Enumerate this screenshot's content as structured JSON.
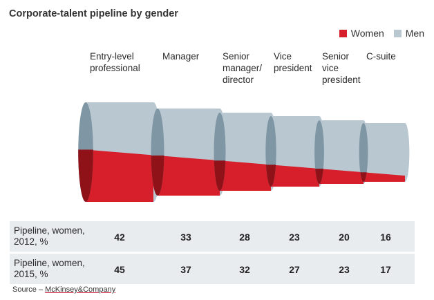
{
  "title": "Corporate-talent pipeline by gender",
  "legend": [
    {
      "label": "Women",
      "color": "#d71e2b"
    },
    {
      "label": "Men",
      "color": "#b9c7d1"
    }
  ],
  "chart_data": {
    "type": "bar",
    "title": "Corporate-talent pipeline by gender",
    "categories": [
      "Entry-level professional",
      "Manager",
      "Senior manager/ director",
      "Vice president",
      "Senior vice president",
      "C-suite"
    ],
    "series": [
      {
        "name": "Pipeline, women, 2012, %",
        "values": [
          42,
          33,
          28,
          23,
          20,
          16
        ]
      },
      {
        "name": "Pipeline, women, 2015, %",
        "values": [
          45,
          37,
          32,
          27,
          23,
          17
        ]
      }
    ]
  },
  "table": {
    "rows": [
      {
        "label": "Pipeline, women, 2012, %",
        "values": [
          "42",
          "33",
          "28",
          "23",
          "20",
          "16"
        ]
      },
      {
        "label": "Pipeline, women, 2015, %",
        "values": [
          "45",
          "37",
          "32",
          "27",
          "23",
          "17"
        ]
      }
    ]
  },
  "source": {
    "prefix": "Source – ",
    "company": "McKinsey&Company"
  },
  "colors": {
    "women": "#d71e2b",
    "women_dark": "#8f1219",
    "men": "#b9c7d1",
    "men_dark": "#7f96a4",
    "table_bg": "#e8ecef"
  }
}
